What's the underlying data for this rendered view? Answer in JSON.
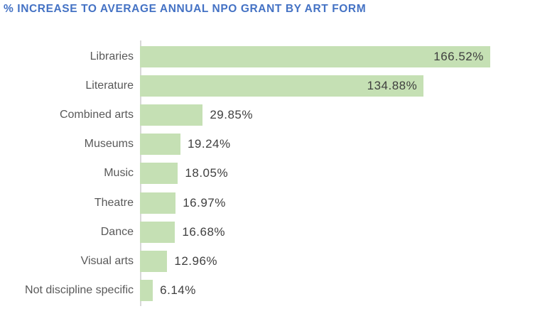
{
  "chart_data": {
    "type": "bar",
    "orientation": "horizontal",
    "title": "% INCREASE TO AVERAGE ANNUAL NPO GRANT BY ART FORM",
    "categories": [
      "Libraries",
      "Literature",
      "Combined arts",
      "Museums",
      "Music",
      "Theatre",
      "Dance",
      "Visual arts",
      "Not discipline specific"
    ],
    "values": [
      166.52,
      134.88,
      29.85,
      19.24,
      18.05,
      16.97,
      16.68,
      12.96,
      6.14
    ],
    "value_labels": [
      "166.52%",
      "134.88%",
      "29.85%",
      "19.24%",
      "18.05%",
      "16.97%",
      "16.68%",
      "12.96%",
      "6.14%"
    ],
    "value_label_inside": [
      true,
      true,
      false,
      false,
      false,
      false,
      false,
      false,
      false
    ],
    "xlabel": "",
    "ylabel": "",
    "xlim": [
      0,
      180
    ],
    "grid": false,
    "legend": false,
    "axis_ticks_visible": false,
    "colors": {
      "bar_fill": "#C5E0B4",
      "title": "#4472C4",
      "category_label": "#595959",
      "value_label": "#3F3F3F",
      "axis_line": "#D8D8D8",
      "background": "#FFFFFF"
    }
  }
}
